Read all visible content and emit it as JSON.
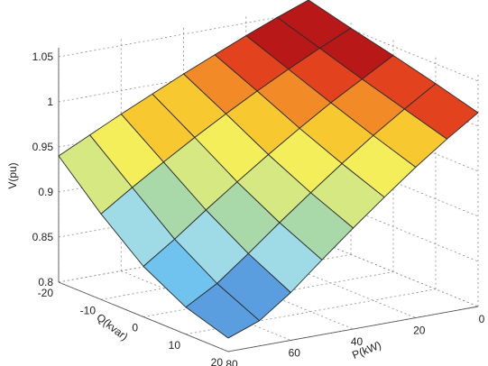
{
  "chart_data": {
    "type": "surface",
    "title": "",
    "xlabel": "P(kW)",
    "ylabel": "Q(kvar)",
    "zlabel": "V(pu)",
    "p": [
      0,
      10,
      20,
      30,
      40,
      50,
      60,
      70,
      80
    ],
    "q": [
      -20,
      -10,
      0,
      10,
      20
    ],
    "v": [
      [
        1.063,
        1.05,
        1.036,
        1.021,
        1.006,
        0.99,
        0.974,
        0.957,
        0.94
      ],
      [
        1.051,
        1.035,
        1.018,
        1.0,
        0.981,
        0.961,
        0.94,
        0.918,
        0.895
      ],
      [
        1.04,
        1.02,
        1.0,
        0.978,
        0.955,
        0.931,
        0.906,
        0.88,
        0.856
      ],
      [
        1.028,
        1.006,
        0.983,
        0.958,
        0.932,
        0.905,
        0.877,
        0.85,
        0.83
      ],
      [
        1.015,
        0.992,
        0.967,
        0.94,
        0.912,
        0.883,
        0.853,
        0.828,
        0.815
      ]
    ],
    "p_lim": [
      0,
      80
    ],
    "q_lim": [
      -20,
      20
    ],
    "v_lim": [
      0.8,
      1.06
    ],
    "p_ticks": [
      0,
      20,
      40,
      60,
      80
    ],
    "q_ticks": [
      -20,
      -10,
      0,
      10,
      20
    ],
    "v_ticks": [
      0.8,
      0.85,
      0.9,
      0.95,
      1,
      1.05
    ],
    "p_tick_labels": [
      "0",
      "20",
      "40",
      "60",
      "80"
    ],
    "q_tick_labels": [
      "-20",
      "-10",
      "0",
      "10",
      "20"
    ],
    "v_tick_labels": [
      "0.8",
      "0.85",
      "0.9",
      "0.95",
      "1",
      "1.05"
    ],
    "grid": true,
    "colormap": [
      "#5a9ee0",
      "#6fc3ee",
      "#9edbe6",
      "#a9d9a8",
      "#d6e882",
      "#f4ee5a",
      "#f7c830",
      "#f28a28",
      "#e2421d",
      "#b81818"
    ]
  }
}
